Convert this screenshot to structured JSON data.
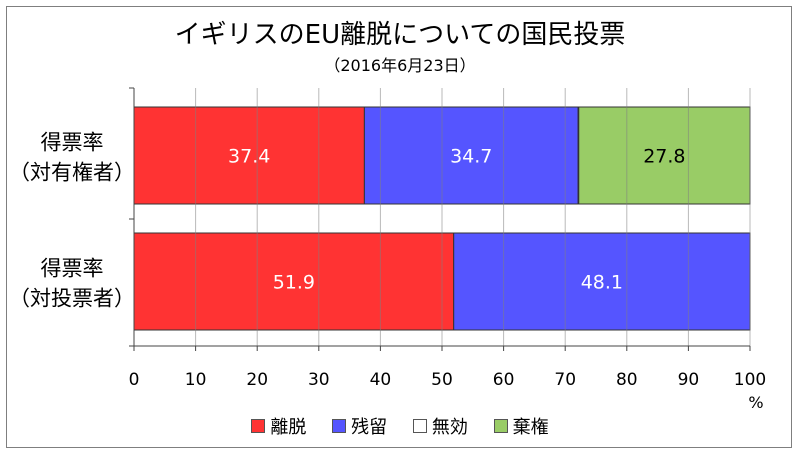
{
  "title": "イギリスのEU離脱についての国民投票",
  "subtitle": "（2016年6月23日）",
  "chart_data": {
    "type": "bar",
    "orientation": "horizontal",
    "stacked": true,
    "categories": [
      {
        "lines": [
          "得票率",
          "（対有権者）"
        ]
      },
      {
        "lines": [
          "得票率",
          "（対投票者）"
        ]
      }
    ],
    "series": [
      {
        "name": "離脱",
        "color": "#ff3333",
        "values": [
          37.4,
          51.9
        ],
        "label_color": "#ffffff"
      },
      {
        "name": "残留",
        "color": "#5555ff",
        "values": [
          34.7,
          48.1
        ],
        "label_color": "#ffffff"
      },
      {
        "name": "無効",
        "color": "#ffffff",
        "values": [
          0.1,
          0
        ],
        "label_color": "#000000"
      },
      {
        "name": "棄権",
        "color": "#99cc66",
        "values": [
          27.8,
          0
        ],
        "label_color": "#000000"
      }
    ],
    "xlim": [
      0,
      100
    ],
    "xticks": [
      "0",
      "10",
      "20",
      "30",
      "40",
      "50",
      "60",
      "70",
      "80",
      "90",
      "100"
    ],
    "xunit": "%",
    "grid": true,
    "legend_position": "bottom"
  }
}
